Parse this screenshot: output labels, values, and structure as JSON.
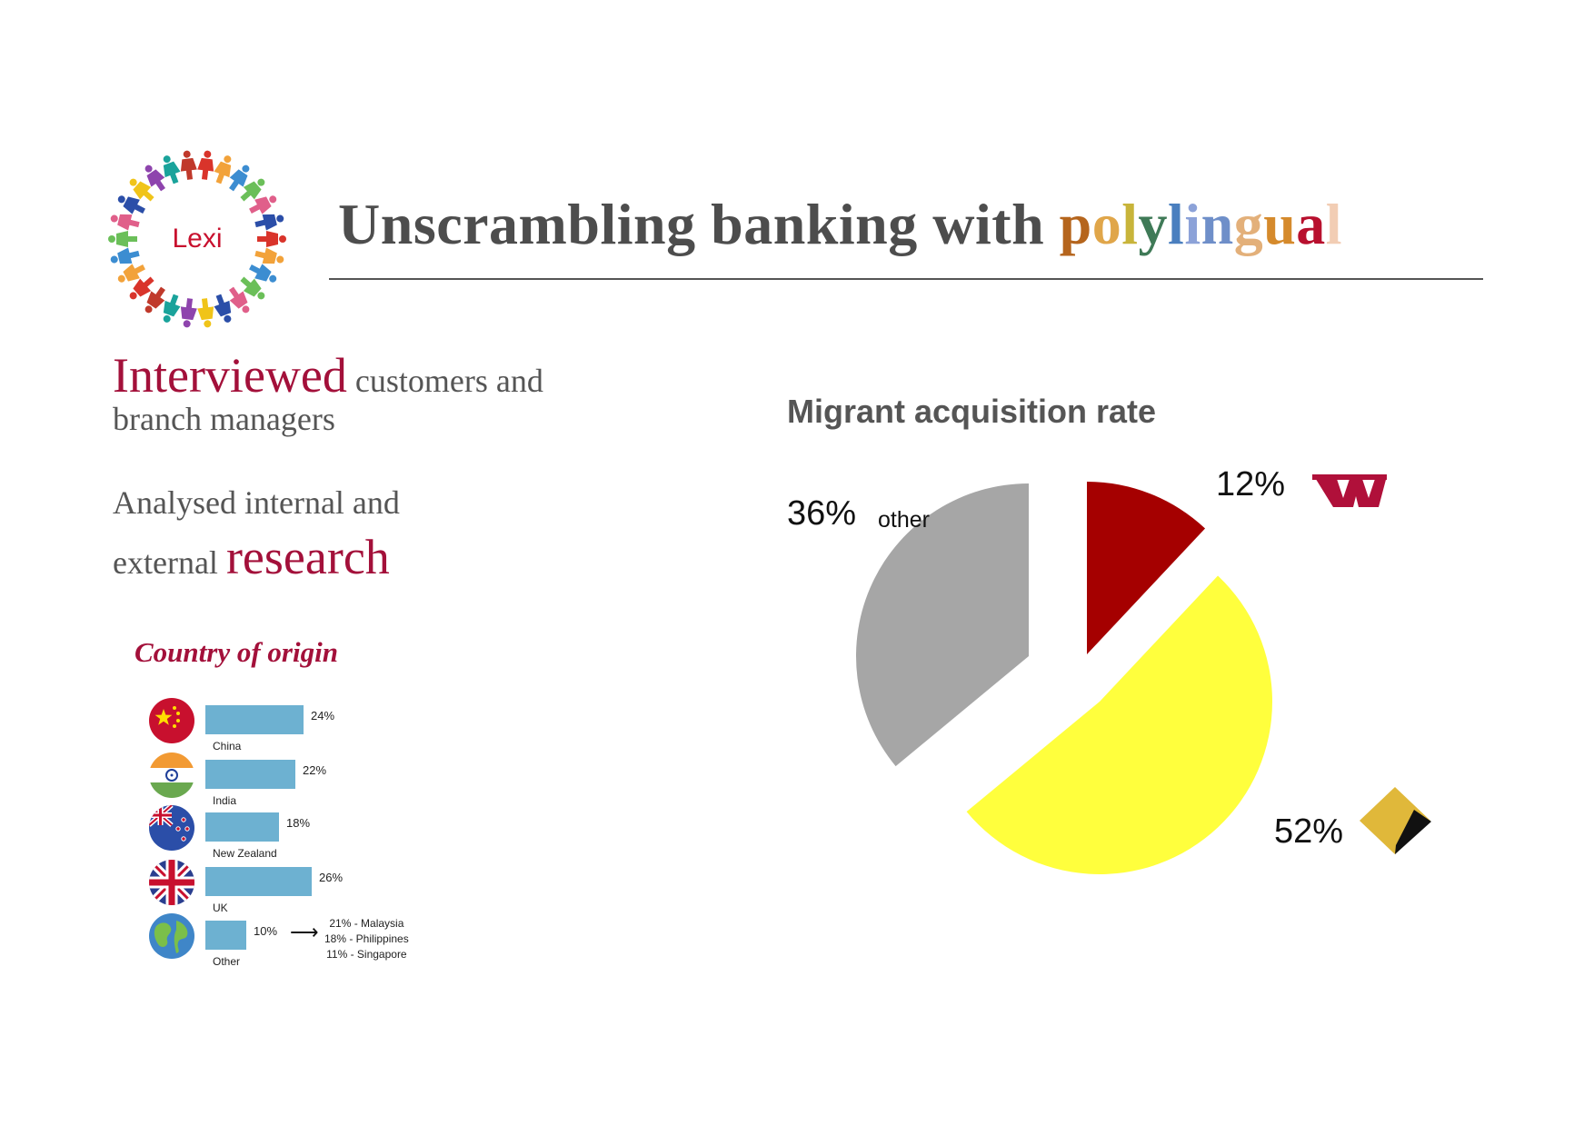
{
  "logo": {
    "text": "Lexi"
  },
  "title": {
    "prefix": "Unscrambling banking with ",
    "highlight_letters": [
      {
        "ch": "p",
        "color": "#b5651d"
      },
      {
        "ch": "o",
        "color": "#e0a64a"
      },
      {
        "ch": "l",
        "color": "#c8b43a"
      },
      {
        "ch": "y",
        "color": "#3f7a57"
      },
      {
        "ch": "l",
        "color": "#4a7fbf"
      },
      {
        "ch": "i",
        "color": "#8ca2d8"
      },
      {
        "ch": "n",
        "color": "#6f8fc9"
      },
      {
        "ch": "g",
        "color": "#e3b07a"
      },
      {
        "ch": "u",
        "color": "#d58a2c"
      },
      {
        "ch": "a",
        "color": "#b8102e"
      },
      {
        "ch": "l",
        "color": "#f2cdb4"
      }
    ]
  },
  "lead": {
    "line1_big": "Interviewed",
    "line1_small": " customers and",
    "line2": "branch managers",
    "line3": "Analysed internal and",
    "line4_small": "external ",
    "line4_big": "research"
  },
  "country_of_origin": {
    "title": "Country of origin",
    "items": [
      {
        "flag": "china-flag-icon",
        "name": "China",
        "value": 24,
        "label": "24%"
      },
      {
        "flag": "india-flag-icon",
        "name": "India",
        "value": 22,
        "label": "22%"
      },
      {
        "flag": "new-zealand-flag-icon",
        "name": "New Zealand",
        "value": 18,
        "label": "18%"
      },
      {
        "flag": "uk-flag-icon",
        "name": "UK",
        "value": 26,
        "label": "26%"
      },
      {
        "flag": "globe-icon",
        "name": "Other",
        "value": 10,
        "label": "10%"
      }
    ],
    "other_breakdown": [
      "21% - Malaysia",
      "18%  - Philippines",
      "11% - Singapore"
    ]
  },
  "chart_data": [
    {
      "type": "bar",
      "categories": [
        "China",
        "India",
        "New Zealand",
        "UK",
        "Other"
      ],
      "values": [
        24,
        22,
        18,
        26,
        10
      ],
      "title": "Country of origin",
      "orientation": "horizontal"
    },
    {
      "type": "pie",
      "title": "Migrant acquisition rate",
      "slices": [
        {
          "label": "12%",
          "value": 12,
          "color": "#a50000",
          "brand": "westpac-logo-icon"
        },
        {
          "label": "52%",
          "value": 52,
          "color": "#ffff3d",
          "brand": "commonwealth-bank-logo-icon"
        },
        {
          "label": "36%",
          "value": 36,
          "name": "other",
          "color": "#a6a6a6"
        }
      ],
      "exploded": true
    }
  ]
}
